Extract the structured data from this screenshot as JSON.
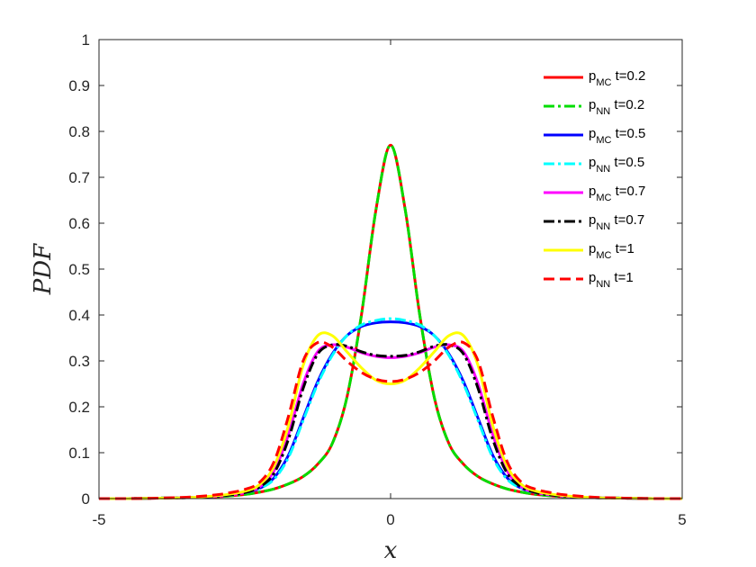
{
  "chart_data": {
    "type": "line",
    "xlabel": "x",
    "ylabel": "PDF",
    "xlim": [
      -5,
      5
    ],
    "ylim": [
      0,
      1
    ],
    "xticks": [
      "-5",
      "0",
      "5"
    ],
    "yticks": [
      "0",
      "0.1",
      "0.2",
      "0.3",
      "0.4",
      "0.5",
      "0.6",
      "0.7",
      "0.8",
      "0.9",
      "1"
    ],
    "grid": false,
    "legend_position": "top-right",
    "x": [
      -5,
      -4.5,
      -4,
      -3.5,
      -3,
      -2.75,
      -2.5,
      -2.25,
      -2,
      -1.75,
      -1.5,
      -1.25,
      -1,
      -0.75,
      -0.5,
      -0.25,
      0,
      0.25,
      0.5,
      0.75,
      1,
      1.25,
      1.5,
      1.75,
      2,
      2.25,
      2.5,
      2.75,
      3,
      3.5,
      4,
      4.5,
      5
    ],
    "series": [
      {
        "name": "p_MC t=0.2",
        "base": "p",
        "sub": "MC",
        "suffix": " t=0.2",
        "color": "#ff0000",
        "dash": "solid",
        "width": 3,
        "values": [
          0,
          0,
          0.001,
          0.002,
          0.004,
          0.006,
          0.009,
          0.014,
          0.021,
          0.032,
          0.048,
          0.075,
          0.12,
          0.22,
          0.4,
          0.63,
          0.77,
          0.63,
          0.4,
          0.22,
          0.12,
          0.075,
          0.048,
          0.032,
          0.021,
          0.014,
          0.009,
          0.006,
          0.004,
          0.002,
          0.001,
          0,
          0
        ]
      },
      {
        "name": "p_NN t=0.2",
        "base": "p",
        "sub": "NN",
        "suffix": " t=0.2",
        "color": "#00dd00",
        "dash": "dashdot",
        "width": 3,
        "values": [
          0,
          0,
          0.001,
          0.002,
          0.004,
          0.006,
          0.009,
          0.014,
          0.021,
          0.032,
          0.048,
          0.075,
          0.12,
          0.22,
          0.4,
          0.63,
          0.77,
          0.63,
          0.4,
          0.22,
          0.12,
          0.075,
          0.048,
          0.032,
          0.021,
          0.014,
          0.009,
          0.006,
          0.004,
          0.002,
          0.001,
          0,
          0
        ]
      },
      {
        "name": "p_MC t=0.5",
        "base": "p",
        "sub": "MC",
        "suffix": " t=0.5",
        "color": "#0000ff",
        "dash": "solid",
        "width": 3,
        "values": [
          0,
          0,
          0.001,
          0.002,
          0.005,
          0.008,
          0.013,
          0.022,
          0.045,
          0.095,
          0.175,
          0.255,
          0.315,
          0.355,
          0.375,
          0.383,
          0.385,
          0.383,
          0.375,
          0.355,
          0.315,
          0.255,
          0.175,
          0.095,
          0.045,
          0.022,
          0.013,
          0.008,
          0.005,
          0.002,
          0.001,
          0,
          0
        ]
      },
      {
        "name": "p_NN t=0.5",
        "base": "p",
        "sub": "NN",
        "suffix": " t=0.5",
        "color": "#00ffff",
        "dash": "dashdot",
        "width": 3,
        "values": [
          0,
          0,
          0.001,
          0.002,
          0.005,
          0.008,
          0.013,
          0.022,
          0.042,
          0.09,
          0.17,
          0.25,
          0.312,
          0.355,
          0.378,
          0.388,
          0.392,
          0.388,
          0.378,
          0.355,
          0.312,
          0.25,
          0.17,
          0.09,
          0.042,
          0.022,
          0.013,
          0.008,
          0.005,
          0.002,
          0.001,
          0,
          0
        ]
      },
      {
        "name": "p_MC t=0.7",
        "base": "p",
        "sub": "MC",
        "suffix": " t=0.7",
        "color": "#ff00ff",
        "dash": "solid",
        "width": 3,
        "values": [
          0,
          0,
          0.001,
          0.002,
          0.005,
          0.008,
          0.013,
          0.025,
          0.06,
          0.14,
          0.25,
          0.32,
          0.335,
          0.33,
          0.318,
          0.31,
          0.307,
          0.31,
          0.318,
          0.33,
          0.335,
          0.32,
          0.25,
          0.14,
          0.06,
          0.025,
          0.013,
          0.008,
          0.005,
          0.002,
          0.001,
          0,
          0
        ]
      },
      {
        "name": "p_NN t=0.7",
        "base": "p",
        "sub": "NN",
        "suffix": " t=0.7",
        "color": "#000000",
        "dash": "dashdot",
        "width": 3,
        "values": [
          0,
          0,
          0.001,
          0.002,
          0.005,
          0.008,
          0.013,
          0.025,
          0.055,
          0.13,
          0.24,
          0.315,
          0.335,
          0.332,
          0.32,
          0.312,
          0.31,
          0.312,
          0.32,
          0.332,
          0.335,
          0.315,
          0.24,
          0.13,
          0.055,
          0.025,
          0.013,
          0.008,
          0.005,
          0.002,
          0.001,
          0,
          0
        ]
      },
      {
        "name": "p_MC t=1",
        "base": "p",
        "sub": "MC",
        "suffix": " t=1",
        "color": "#ffff00",
        "dash": "solid",
        "width": 3,
        "values": [
          0,
          0,
          0.001,
          0.002,
          0.006,
          0.01,
          0.016,
          0.03,
          0.07,
          0.16,
          0.29,
          0.355,
          0.355,
          0.32,
          0.285,
          0.258,
          0.25,
          0.258,
          0.285,
          0.32,
          0.355,
          0.355,
          0.29,
          0.16,
          0.07,
          0.03,
          0.016,
          0.01,
          0.006,
          0.002,
          0.001,
          0,
          0
        ]
      },
      {
        "name": "p_NN t=1",
        "base": "p",
        "sub": "NN",
        "suffix": " t=1",
        "color": "#ff0000",
        "dash": "dashed",
        "width": 3,
        "values": [
          0,
          0,
          0.001,
          0.003,
          0.008,
          0.013,
          0.02,
          0.035,
          0.08,
          0.18,
          0.3,
          0.34,
          0.33,
          0.3,
          0.275,
          0.26,
          0.255,
          0.26,
          0.275,
          0.3,
          0.33,
          0.34,
          0.3,
          0.18,
          0.08,
          0.035,
          0.02,
          0.013,
          0.008,
          0.003,
          0.001,
          0,
          0
        ]
      }
    ]
  }
}
